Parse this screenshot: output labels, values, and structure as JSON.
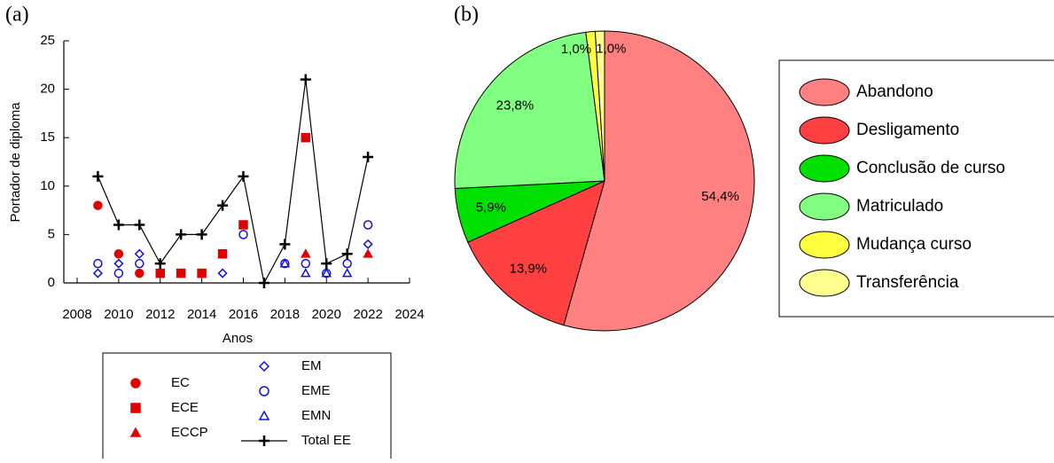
{
  "chart_data": [
    {
      "type": "scatter",
      "panel_label": "(a)",
      "xlabel": "Anos",
      "ylabel": "Portador de diploma",
      "xlim": [
        2008,
        2024
      ],
      "xticks": [
        2008,
        2010,
        2012,
        2014,
        2016,
        2018,
        2020,
        2022,
        2024
      ],
      "ylim": [
        0,
        25
      ],
      "yticks": [
        0,
        5,
        10,
        15,
        20,
        25
      ],
      "x": [
        2009,
        2010,
        2011,
        2012,
        2013,
        2014,
        2015,
        2016,
        2017,
        2018,
        2019,
        2020,
        2021,
        2022
      ],
      "series": [
        {
          "name": "EC",
          "color": "#e00000",
          "marker": "circle",
          "filled": true,
          "line": false,
          "values": [
            8,
            3,
            1,
            null,
            null,
            null,
            null,
            null,
            null,
            null,
            null,
            null,
            null,
            null
          ]
        },
        {
          "name": "ECE",
          "color": "#e00000",
          "marker": "square",
          "filled": true,
          "line": false,
          "values": [
            null,
            null,
            null,
            1,
            1,
            1,
            3,
            6,
            null,
            null,
            15,
            null,
            null,
            null
          ]
        },
        {
          "name": "ECCP",
          "color": "#e00000",
          "marker": "triangle",
          "filled": true,
          "line": false,
          "values": [
            null,
            null,
            null,
            null,
            null,
            null,
            null,
            null,
            null,
            null,
            3,
            null,
            null,
            3
          ]
        },
        {
          "name": "EM",
          "color": "#1010e0",
          "marker": "diamond",
          "filled": false,
          "line": false,
          "values": [
            1,
            2,
            3,
            null,
            null,
            null,
            1,
            null,
            null,
            null,
            null,
            null,
            null,
            4
          ]
        },
        {
          "name": "EME",
          "color": "#1010e0",
          "marker": "circle",
          "filled": false,
          "line": false,
          "values": [
            2,
            1,
            2,
            null,
            null,
            null,
            null,
            5,
            null,
            2,
            2,
            1,
            2,
            6
          ]
        },
        {
          "name": "EMN",
          "color": "#1010e0",
          "marker": "triangle",
          "filled": false,
          "line": false,
          "values": [
            null,
            null,
            null,
            null,
            null,
            null,
            null,
            null,
            null,
            2,
            1,
            1,
            1,
            null
          ]
        },
        {
          "name": "Total EE",
          "color": "#000000",
          "marker": "plus",
          "filled": false,
          "line": true,
          "values": [
            11,
            6,
            6,
            2,
            5,
            5,
            8,
            11,
            0,
            4,
            21,
            2,
            3,
            13
          ]
        }
      ]
    },
    {
      "type": "pie",
      "panel_label": "(b)",
      "categories": [
        "Abandono",
        "Desligamento",
        "Conclusão de curso",
        "Matriculado",
        "Mudança curso",
        "Transferência"
      ],
      "values": [
        54.4,
        13.9,
        5.9,
        23.8,
        1.0,
        1.0
      ],
      "value_labels": [
        "54,4%",
        "13,9%",
        "5,9%",
        "23,8%",
        "1,0%",
        "1,0%"
      ],
      "colors": [
        "#ff8080",
        "#ff4040",
        "#00e000",
        "#80ff80",
        "#ffff40",
        "#ffff90"
      ]
    }
  ]
}
